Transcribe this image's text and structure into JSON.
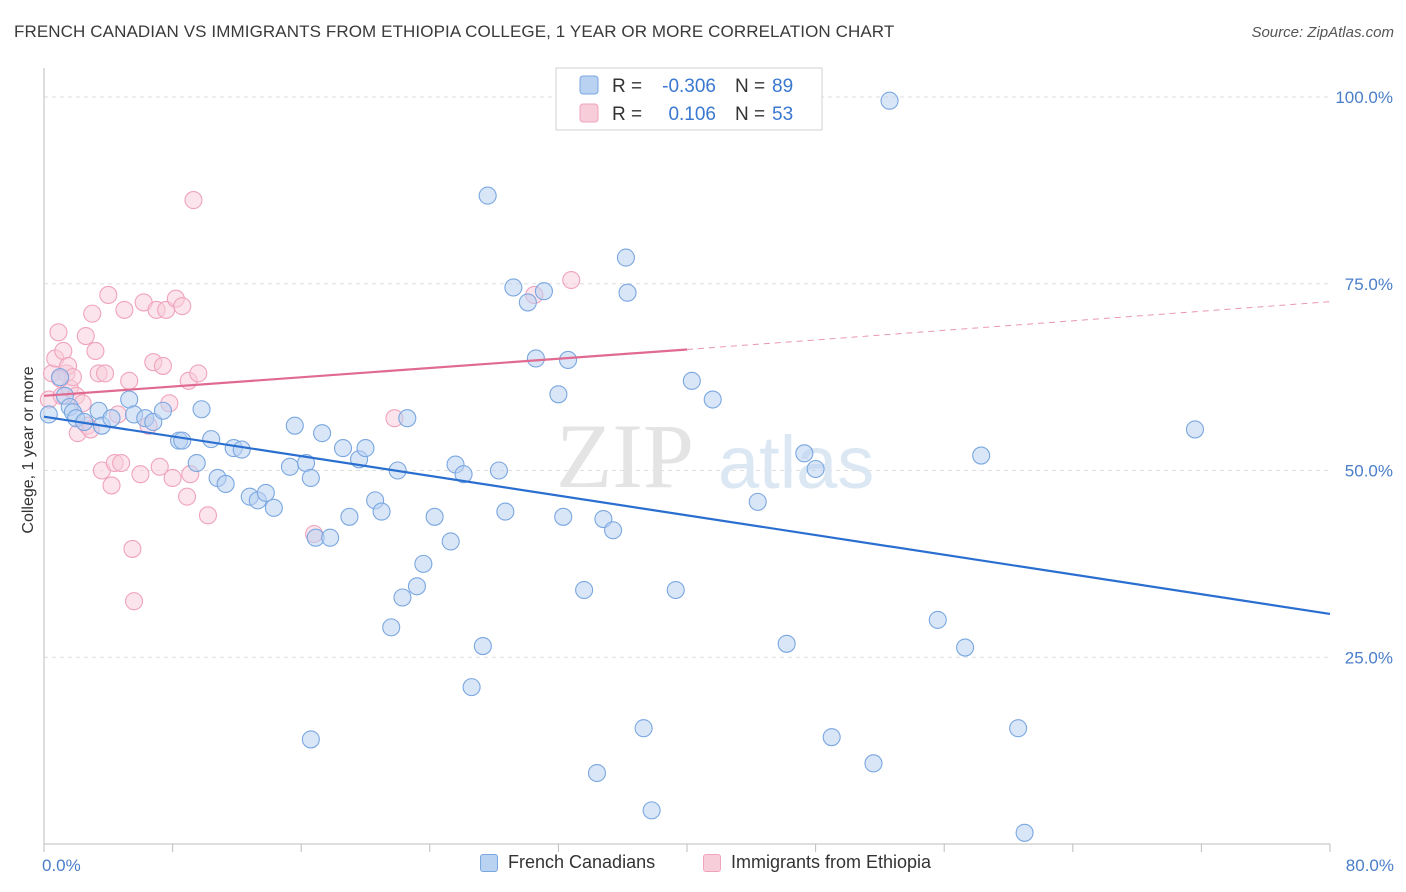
{
  "title": "FRENCH CANADIAN VS IMMIGRANTS FROM ETHIOPIA COLLEGE, 1 YEAR OR MORE CORRELATION CHART",
  "source": "Source: ZipAtlas.com",
  "watermark": {
    "zip": "ZIP",
    "atlas": "atlas"
  },
  "legend": {
    "rows": [
      {
        "r_label": "R =",
        "r_value": "-0.306",
        "n_label": "N =",
        "n_value": "89"
      },
      {
        "r_label": "R =",
        "r_value": "0.106",
        "n_label": "N =",
        "n_value": "53"
      }
    ]
  },
  "chart_data": {
    "type": "scatter",
    "xlabel": "",
    "ylabel": "College, 1 year or more",
    "xlim": [
      0,
      80
    ],
    "ylim": [
      0,
      100
    ],
    "x_ticks": [
      "0.0%",
      "80.0%"
    ],
    "y_ticks": [
      {
        "value": 100,
        "label": "100.0%"
      },
      {
        "value": 75,
        "label": "75.0%"
      },
      {
        "value": 50,
        "label": "50.0%"
      },
      {
        "value": 25,
        "label": "25.0%"
      }
    ],
    "grid": true,
    "legend_position": "top-center",
    "series": [
      {
        "name": "French Canadians",
        "color": "#7aa7e0",
        "fill": "#b9d2f2",
        "trend_color": "#2a6fd0",
        "trend": {
          "x0": 0,
          "y0": 57.2,
          "x1": 80,
          "y1": 30.8
        },
        "points": [
          [
            0.3,
            57.5
          ],
          [
            1.0,
            62.5
          ],
          [
            1.3,
            60.0
          ],
          [
            1.6,
            58.5
          ],
          [
            1.8,
            57.8
          ],
          [
            2.0,
            57.0
          ],
          [
            2.5,
            56.5
          ],
          [
            3.4,
            58.0
          ],
          [
            3.6,
            56.0
          ],
          [
            4.2,
            57.0
          ],
          [
            5.3,
            59.5
          ],
          [
            5.6,
            57.5
          ],
          [
            6.3,
            57.0
          ],
          [
            6.8,
            56.5
          ],
          [
            7.4,
            58.0
          ],
          [
            8.4,
            54.0
          ],
          [
            8.6,
            54.0
          ],
          [
            9.5,
            51.0
          ],
          [
            9.8,
            58.2
          ],
          [
            10.4,
            54.2
          ],
          [
            10.8,
            49.0
          ],
          [
            11.3,
            48.2
          ],
          [
            11.8,
            53.0
          ],
          [
            12.3,
            52.8
          ],
          [
            12.8,
            46.5
          ],
          [
            13.3,
            46.0
          ],
          [
            13.8,
            47.0
          ],
          [
            14.3,
            45.0
          ],
          [
            15.3,
            50.5
          ],
          [
            15.6,
            56.0
          ],
          [
            16.3,
            51.0
          ],
          [
            16.6,
            49.0
          ],
          [
            16.9,
            41.0
          ],
          [
            17.3,
            55.0
          ],
          [
            17.8,
            41.0
          ],
          [
            18.6,
            53.0
          ],
          [
            19.0,
            43.8
          ],
          [
            19.6,
            51.5
          ],
          [
            20.0,
            53.0
          ],
          [
            20.6,
            46.0
          ],
          [
            21.0,
            44.5
          ],
          [
            21.6,
            29.0
          ],
          [
            22.0,
            50.0
          ],
          [
            22.3,
            33.0
          ],
          [
            22.6,
            57.0
          ],
          [
            23.2,
            34.5
          ],
          [
            23.6,
            37.5
          ],
          [
            24.3,
            43.8
          ],
          [
            25.3,
            40.5
          ],
          [
            25.6,
            50.8
          ],
          [
            26.1,
            49.5
          ],
          [
            26.6,
            21.0
          ],
          [
            27.3,
            26.5
          ],
          [
            28.3,
            50.0
          ],
          [
            28.7,
            44.5
          ],
          [
            29.2,
            74.5
          ],
          [
            30.1,
            72.5
          ],
          [
            30.6,
            65.0
          ],
          [
            31.1,
            74.0
          ],
          [
            32.0,
            60.2
          ],
          [
            32.3,
            43.8
          ],
          [
            32.6,
            64.8
          ],
          [
            33.6,
            34.0
          ],
          [
            34.4,
            9.5
          ],
          [
            34.8,
            43.5
          ],
          [
            35.4,
            42.0
          ],
          [
            36.2,
            78.5
          ],
          [
            36.3,
            73.8
          ],
          [
            37.3,
            15.5
          ],
          [
            37.8,
            4.5
          ],
          [
            39.3,
            34.0
          ],
          [
            40.3,
            62.0
          ],
          [
            41.6,
            59.5
          ],
          [
            44.4,
            45.8
          ],
          [
            46.2,
            26.8
          ],
          [
            47.3,
            52.3
          ],
          [
            48.0,
            50.2
          ],
          [
            49.0,
            14.3
          ],
          [
            51.6,
            10.8
          ],
          [
            55.6,
            30.0
          ],
          [
            57.3,
            26.3
          ],
          [
            58.3,
            52.0
          ],
          [
            60.6,
            15.5
          ],
          [
            61.0,
            1.5
          ],
          [
            71.6,
            55.5
          ],
          [
            52.6,
            99.5
          ],
          [
            41.0,
            99.0
          ],
          [
            16.6,
            14.0
          ],
          [
            27.6,
            86.8
          ]
        ]
      },
      {
        "name": "Immigrants from Ethiopia",
        "color": "#f0a3bd",
        "fill": "#f8cdda",
        "trend_color": "#e06a90",
        "trend": {
          "x0": 0,
          "y0": 60.0,
          "x1": 40,
          "y1": 66.2,
          "x_dash_end": 80,
          "y_dash_end": 72.6
        },
        "points": [
          [
            0.3,
            59.5
          ],
          [
            0.5,
            63.0
          ],
          [
            0.7,
            65.0
          ],
          [
            0.9,
            68.5
          ],
          [
            1.1,
            60.0
          ],
          [
            1.2,
            66.0
          ],
          [
            1.4,
            63.0
          ],
          [
            1.5,
            64.0
          ],
          [
            1.6,
            61.0
          ],
          [
            1.8,
            62.5
          ],
          [
            2.0,
            60.0
          ],
          [
            2.1,
            55.0
          ],
          [
            2.4,
            59.0
          ],
          [
            2.6,
            68.0
          ],
          [
            2.7,
            56.0
          ],
          [
            2.9,
            55.5
          ],
          [
            3.0,
            71.0
          ],
          [
            3.2,
            66.0
          ],
          [
            3.4,
            63.0
          ],
          [
            3.6,
            50.0
          ],
          [
            3.8,
            63.0
          ],
          [
            4.0,
            73.5
          ],
          [
            4.2,
            48.0
          ],
          [
            4.4,
            51.0
          ],
          [
            4.6,
            57.5
          ],
          [
            4.8,
            51.0
          ],
          [
            5.0,
            71.5
          ],
          [
            5.3,
            62.0
          ],
          [
            5.5,
            39.5
          ],
          [
            5.6,
            32.5
          ],
          [
            6.0,
            49.5
          ],
          [
            6.2,
            72.5
          ],
          [
            6.5,
            56.0
          ],
          [
            6.8,
            64.5
          ],
          [
            7.0,
            71.5
          ],
          [
            7.2,
            50.5
          ],
          [
            7.4,
            64.0
          ],
          [
            7.6,
            71.5
          ],
          [
            7.8,
            59.0
          ],
          [
            8.0,
            49.0
          ],
          [
            8.2,
            73.0
          ],
          [
            8.6,
            72.0
          ],
          [
            8.9,
            46.5
          ],
          [
            9.0,
            62.0
          ],
          [
            9.1,
            49.5
          ],
          [
            9.3,
            86.2
          ],
          [
            9.6,
            63.0
          ],
          [
            10.2,
            44.0
          ],
          [
            16.8,
            41.5
          ],
          [
            21.8,
            57.0
          ],
          [
            30.5,
            73.5
          ],
          [
            32.8,
            75.5
          ],
          [
            1.0,
            62.3
          ]
        ]
      }
    ]
  }
}
